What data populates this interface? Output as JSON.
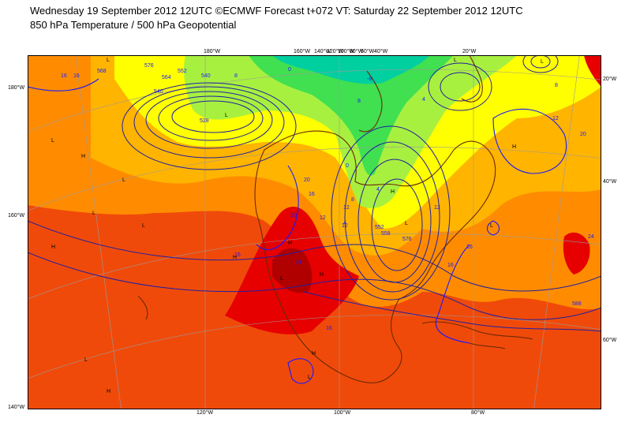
{
  "header": {
    "line1": "Wednesday 19 September 2012 12UTC ©ECMWF Forecast t+072 VT: Saturday 22 September 2012 12UTC",
    "line2": "850 hPa Temperature / 500 hPa Geopotential"
  },
  "colors": {
    "background": "#ffffff",
    "t_warmest": "#e60000",
    "t_very_warm": "#f04a0a",
    "t_warm": "#ff8c00",
    "t_mild": "#ffb400",
    "t_cool": "#ffff00",
    "t_cold": "#a8f040",
    "t_colder": "#40e050",
    "t_coldest": "#00cfa0",
    "geopotential_contour": "#2020a0",
    "isotherm": "#1a1aff",
    "coastline": "#6b2a00",
    "graticule": "#9a9a9a"
  },
  "map": {
    "projection": "polar-stereographic",
    "top_lon_labels": [
      "180°W",
      "160°W",
      "140°W",
      "120°W",
      "100°W",
      "80°W",
      "60°W",
      "40°W",
      "20°W"
    ],
    "bottom_lon_labels": [
      "120°W",
      "100°W",
      "80°W"
    ],
    "left_lat_labels": [
      "180°W",
      "160°W",
      "140°W"
    ],
    "right_lat_labels": [
      "20°W",
      "40°W",
      "60°W"
    ],
    "contour_labels": [
      "16",
      "16",
      "568",
      "576",
      "564",
      "552",
      "540",
      "8",
      "0",
      "-8",
      "528",
      "540",
      "12",
      "8",
      "4",
      "0",
      "8",
      "12",
      "20",
      "24",
      "12",
      "16",
      "16",
      "24",
      "16",
      "4",
      "552",
      "558",
      "576",
      "8",
      "12",
      "16",
      "20",
      "588",
      "12",
      "16",
      "4",
      "20"
    ],
    "pressure_symbols": [
      "L",
      "L",
      "L",
      "H",
      "H",
      "L",
      "L",
      "H",
      "L",
      "H",
      "L",
      "H",
      "L",
      "L",
      "L",
      "H",
      "L",
      "H",
      "H",
      "L",
      "L",
      "H"
    ]
  }
}
